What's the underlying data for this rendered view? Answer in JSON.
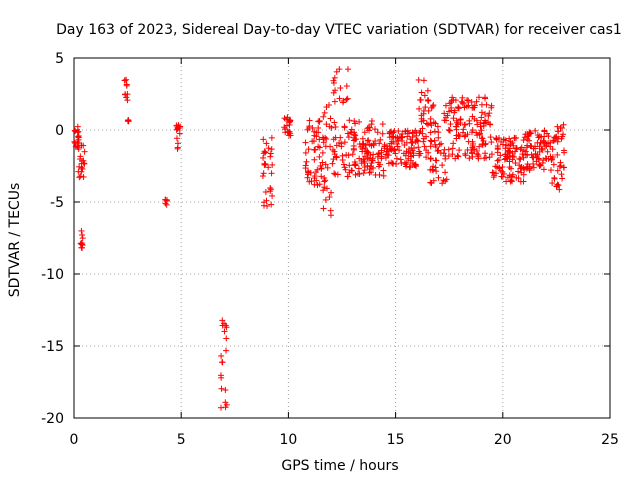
{
  "chart_data": {
    "type": "scatter",
    "title": "Day 163 of 2023, Sidereal Day-to-day VTEC variation (SDTVAR) for receiver cas1",
    "xlabel": "GPS time / hours",
    "ylabel": "SDTVAR / TECUs",
    "xlim": [
      0,
      25
    ],
    "ylim": [
      -20,
      5
    ],
    "xticks": [
      0,
      5,
      10,
      15,
      20,
      25
    ],
    "yticks": [
      5,
      0,
      -5,
      -10,
      -15,
      -20
    ],
    "xtick_labels": [
      "0",
      "5",
      "10",
      "15",
      "20",
      "25"
    ],
    "ytick_labels": [
      "5",
      "0",
      "-5",
      "-10",
      "-15",
      "-20"
    ],
    "grid": true,
    "marker": "+",
    "color": "#ff0000",
    "series": [
      {
        "name": "SDTVAR",
        "segments": [
          {
            "x0": 0.0,
            "x1": 0.25,
            "y_low": -1.5,
            "y_high": 0.3
          },
          {
            "x0": 0.2,
            "x1": 0.5,
            "y_low": -3.4,
            "y_high": -1.0
          },
          {
            "x0": 0.3,
            "x1": 0.45,
            "y_low": -8.2,
            "y_high": -7.0
          },
          {
            "x0": 2.35,
            "x1": 2.5,
            "y_low": 1.8,
            "y_high": 3.6
          },
          {
            "x0": 2.5,
            "x1": 2.55,
            "y_low": 0.6,
            "y_high": 0.7
          },
          {
            "x0": 4.25,
            "x1": 4.35,
            "y_low": -5.3,
            "y_high": -4.6
          },
          {
            "x0": 4.75,
            "x1": 4.95,
            "y_low": -1.4,
            "y_high": 0.4
          },
          {
            "x0": 6.85,
            "x1": 7.15,
            "y_low": -19.6,
            "y_high": -13.2
          },
          {
            "x0": 8.8,
            "x1": 9.25,
            "y_low": -5.5,
            "y_high": -0.5
          },
          {
            "x0": 9.8,
            "x1": 10.1,
            "y_low": -0.6,
            "y_high": 1.0
          },
          {
            "x0": 10.8,
            "x1": 11.6,
            "y_low": -4.0,
            "y_high": 0.8
          },
          {
            "x0": 11.6,
            "x1": 12.1,
            "y_low": -6.0,
            "y_high": 2.0
          },
          {
            "x0": 12.1,
            "x1": 12.8,
            "y_low": -3.5,
            "y_high": 4.3
          },
          {
            "x0": 12.8,
            "x1": 14.5,
            "y_low": -3.2,
            "y_high": 0.8
          },
          {
            "x0": 14.5,
            "x1": 16.0,
            "y_low": -2.6,
            "y_high": 0.0
          },
          {
            "x0": 16.0,
            "x1": 16.6,
            "y_low": -2.0,
            "y_high": 3.5
          },
          {
            "x0": 16.6,
            "x1": 17.5,
            "y_low": -3.9,
            "y_high": 2.0
          },
          {
            "x0": 17.5,
            "x1": 19.5,
            "y_low": -2.0,
            "y_high": 2.3
          },
          {
            "x0": 19.5,
            "x1": 21.0,
            "y_low": -3.6,
            "y_high": -0.5
          },
          {
            "x0": 21.0,
            "x1": 22.3,
            "y_low": -2.8,
            "y_high": 0.0
          },
          {
            "x0": 22.3,
            "x1": 22.9,
            "y_low": -4.3,
            "y_high": 0.7
          }
        ]
      }
    ]
  }
}
